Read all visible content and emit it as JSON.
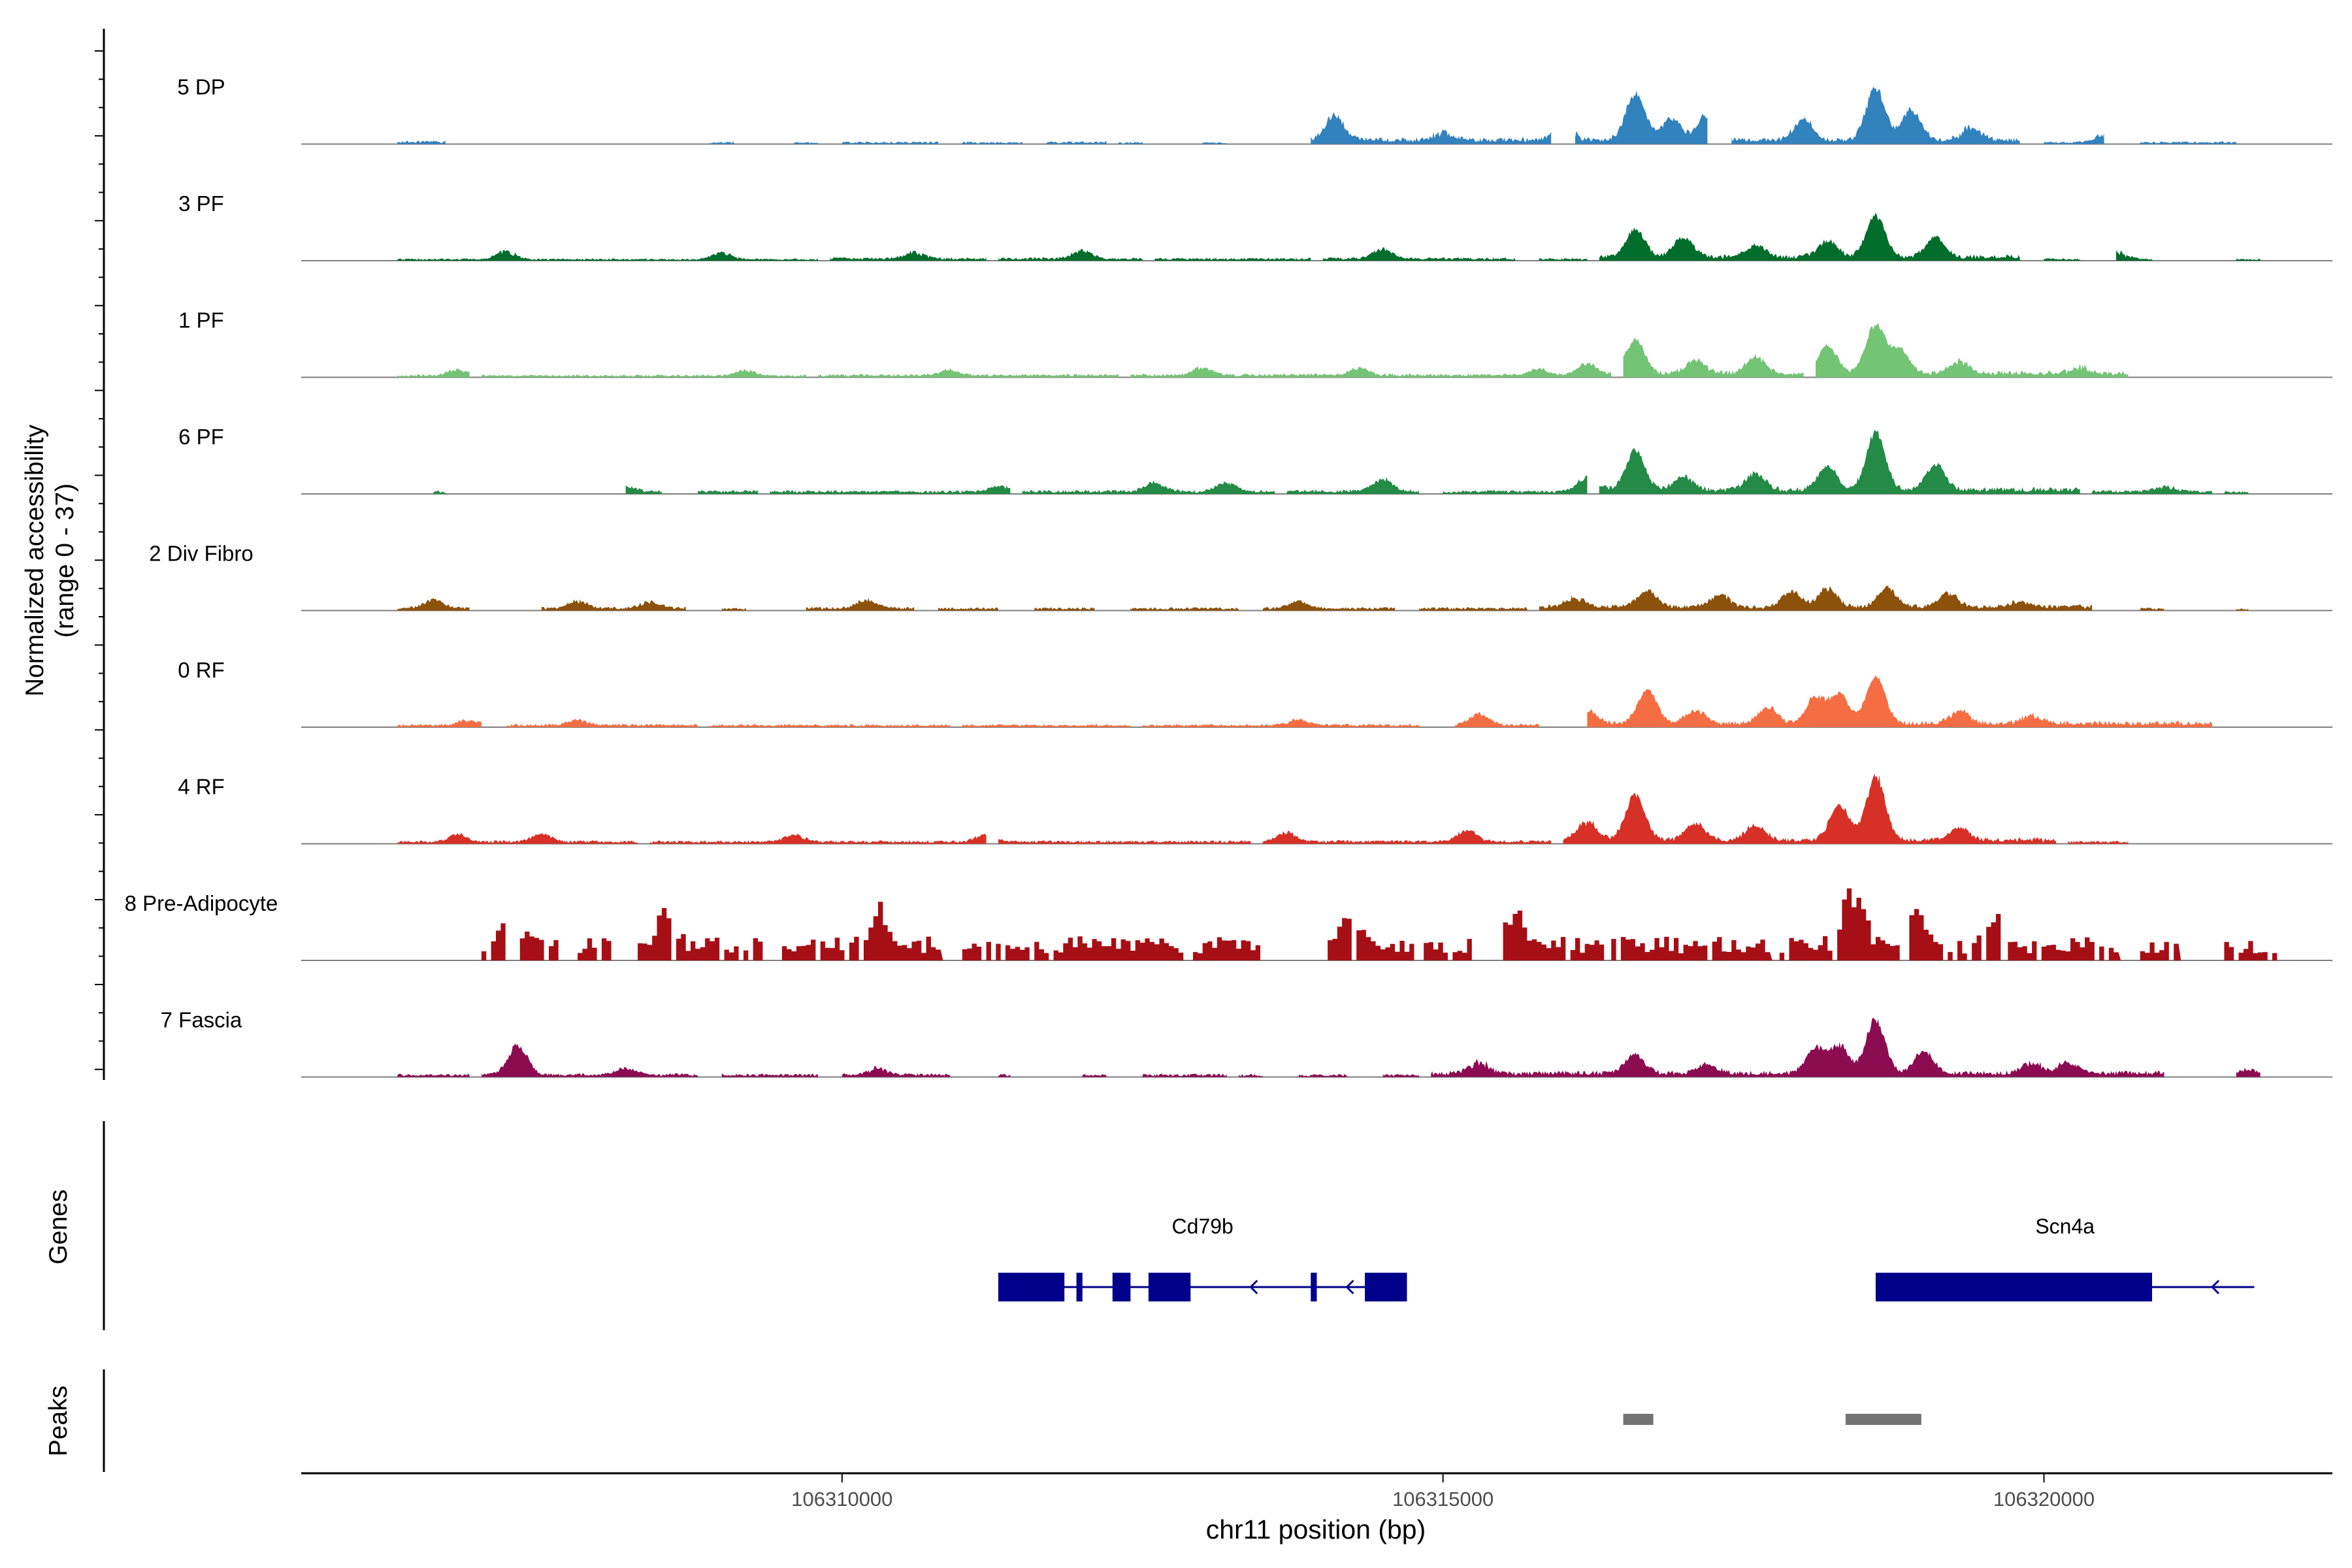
{
  "chart_data": {
    "type": "area",
    "region": {
      "chromosome": "chr11",
      "start": 106305500,
      "end": 106322400
    },
    "y_axis": {
      "label_line1": "Normalized accessibility",
      "label_line2": "(range 0 - 37)",
      "range": [
        0,
        37
      ]
    },
    "x_axis": {
      "label": "chr11 position (bp)",
      "ticks": [
        106310000,
        106315000,
        106320000
      ],
      "tick_labels": [
        "106310000",
        "106315000",
        "106320000"
      ]
    },
    "tracks": [
      {
        "name": "5 DP",
        "color": "#3182bd",
        "style": "smooth",
        "seed": 11,
        "segments": [
          [
            106306300,
            106306700,
            0.5
          ],
          [
            106308900,
            106309100,
            0.3
          ],
          [
            106309600,
            106309800,
            0.3
          ],
          [
            106310000,
            106310800,
            0.35
          ],
          [
            106311000,
            106311500,
            0.3
          ],
          [
            106311700,
            106312200,
            0.35
          ],
          [
            106312300,
            106312500,
            0.3
          ],
          [
            106313000,
            106313200,
            0.3
          ],
          [
            106313900,
            106315900,
            0.9
          ],
          [
            106316100,
            106317200,
            1.0
          ],
          [
            106317400,
            106319800,
            0.85
          ],
          [
            106320000,
            106320500,
            0.35
          ],
          [
            106320800,
            106321600,
            0.35
          ]
        ],
        "peaks": [
          [
            106314100,
            8,
            0.75
          ],
          [
            106315000,
            3,
            0.5
          ],
          [
            106316000,
            5,
            0.5
          ],
          [
            106316600,
            14,
            0.9
          ],
          [
            106316900,
            6,
            1.0
          ],
          [
            106317200,
            8,
            0.75
          ],
          [
            106318000,
            7,
            0.8
          ],
          [
            106318600,
            16,
            0.85
          ],
          [
            106318900,
            10,
            0.8
          ],
          [
            106319400,
            5,
            0.5
          ],
          [
            106320500,
            3,
            0.4
          ]
        ]
      },
      {
        "name": "3 PF",
        "color": "#006d2c",
        "style": "smooth",
        "seed": 23,
        "segments": [
          [
            106306300,
            106309800,
            0.3
          ],
          [
            106309900,
            106311200,
            0.45
          ],
          [
            106311300,
            106312500,
            0.45
          ],
          [
            106312600,
            106313900,
            0.4
          ],
          [
            106314000,
            106315600,
            0.45
          ],
          [
            106315800,
            106316200,
            0.35
          ],
          [
            106316300,
            106319800,
            0.85
          ],
          [
            106320000,
            106320300,
            0.35
          ],
          [
            106320600,
            106320900,
            0.35
          ],
          [
            106321600,
            106321800,
            0.3
          ]
        ],
        "peaks": [
          [
            106307200,
            3,
            0.5
          ],
          [
            106309000,
            2.5,
            0.5
          ],
          [
            106310600,
            2.5,
            0.5
          ],
          [
            106312000,
            3,
            0.6
          ],
          [
            106314500,
            3.5,
            0.6
          ],
          [
            106316600,
            8,
            1.0
          ],
          [
            106317000,
            6,
            0.9
          ],
          [
            106317600,
            4,
            0.8
          ],
          [
            106318200,
            5,
            0.9
          ],
          [
            106318600,
            13,
            0.85
          ],
          [
            106319100,
            6,
            0.9
          ],
          [
            106320600,
            3,
            0.4
          ]
        ]
      },
      {
        "name": "1 PF",
        "color": "#74c476",
        "style": "smooth",
        "seed": 37,
        "segments": [
          [
            106306300,
            106306900,
            0.4
          ],
          [
            106307000,
            106309700,
            0.35
          ],
          [
            106309800,
            106312300,
            0.45
          ],
          [
            106312400,
            106316400,
            0.5
          ],
          [
            106316500,
            106318000,
            0.9
          ],
          [
            106318100,
            106320700,
            0.9
          ]
        ],
        "peaks": [
          [
            106306800,
            2,
            0.6
          ],
          [
            106309200,
            2,
            0.6
          ],
          [
            106310900,
            2,
            0.6
          ],
          [
            106313000,
            2.5,
            0.7
          ],
          [
            106314300,
            2.5,
            0.7
          ],
          [
            106315800,
            2,
            0.7
          ],
          [
            106316200,
            4,
            0.7
          ],
          [
            106316600,
            10,
            0.95
          ],
          [
            106317100,
            4,
            0.9
          ],
          [
            106317600,
            5,
            0.9
          ],
          [
            106318200,
            8,
            1.0
          ],
          [
            106318600,
            15,
            0.85
          ],
          [
            106318800,
            7,
            1.0
          ],
          [
            106319300,
            4,
            0.7
          ],
          [
            106320300,
            2,
            0.5
          ]
        ]
      },
      {
        "name": "6 PF",
        "color": "#238b45",
        "style": "smooth",
        "seed": 41,
        "segments": [
          [
            106306600,
            106306700,
            0.5
          ],
          [
            106308200,
            106308500,
            0.5
          ],
          [
            106308800,
            106309300,
            0.5
          ],
          [
            106309400,
            106311400,
            0.5
          ],
          [
            106311500,
            106313600,
            0.55
          ],
          [
            106313700,
            106314800,
            0.6
          ],
          [
            106315000,
            106316200,
            0.5
          ],
          [
            106316300,
            106320300,
            0.9
          ],
          [
            106320400,
            106321400,
            0.55
          ],
          [
            106321500,
            106321700,
            0.4
          ]
        ],
        "peaks": [
          [
            106308200,
            2,
            0.6
          ],
          [
            106311300,
            2,
            0.6
          ],
          [
            106312600,
            3,
            0.7
          ],
          [
            106313200,
            3,
            0.7
          ],
          [
            106314500,
            4,
            0.8
          ],
          [
            106316200,
            5,
            0.75
          ],
          [
            106316600,
            12,
            0.9
          ],
          [
            106317000,
            4,
            0.9
          ],
          [
            106317600,
            5,
            0.9
          ],
          [
            106318200,
            7,
            1.0
          ],
          [
            106318600,
            18,
            0.85
          ],
          [
            106319100,
            8,
            0.85
          ],
          [
            106321000,
            2,
            0.5
          ]
        ]
      },
      {
        "name": "2 Div Fibro",
        "color": "#8c510a",
        "style": "smooth",
        "seed": 53,
        "segments": [
          [
            106306300,
            106306900,
            0.5
          ],
          [
            106307500,
            106308700,
            0.5
          ],
          [
            106309000,
            106309200,
            0.4
          ],
          [
            106309700,
            106310600,
            0.5
          ],
          [
            106310800,
            106311300,
            0.45
          ],
          [
            106311600,
            106312100,
            0.45
          ],
          [
            106312400,
            106313300,
            0.45
          ],
          [
            106313500,
            106314600,
            0.5
          ],
          [
            106314800,
            106315700,
            0.45
          ],
          [
            106315800,
            106320400,
            0.8
          ],
          [
            106320800,
            106321000,
            0.4
          ],
          [
            106321600,
            106321700,
            0.3
          ]
        ],
        "peaks": [
          [
            106306600,
            3,
            0.6
          ],
          [
            106307800,
            2.5,
            0.6
          ],
          [
            106308400,
            2.5,
            0.6
          ],
          [
            106310200,
            3,
            0.6
          ],
          [
            106313800,
            2.5,
            0.6
          ],
          [
            106316100,
            3,
            0.7
          ],
          [
            106316700,
            5,
            0.8
          ],
          [
            106317300,
            4,
            0.8
          ],
          [
            106317900,
            5,
            0.8
          ],
          [
            106318200,
            6,
            0.8
          ],
          [
            106318700,
            6,
            0.8
          ],
          [
            106319200,
            5,
            0.7
          ],
          [
            106319800,
            2,
            0.5
          ]
        ]
      },
      {
        "name": "0 RF",
        "color": "#f46d43",
        "style": "smooth",
        "seed": 67,
        "segments": [
          [
            106306300,
            106307000,
            0.45
          ],
          [
            106307200,
            106308800,
            0.45
          ],
          [
            106308900,
            106310900,
            0.4
          ],
          [
            106311000,
            106312400,
            0.4
          ],
          [
            106312500,
            106313500,
            0.4
          ],
          [
            106313500,
            106314800,
            0.45
          ],
          [
            106315100,
            106315800,
            0.45
          ],
          [
            106316200,
            106321400,
            0.85
          ]
        ],
        "peaks": [
          [
            106306900,
            2,
            0.6
          ],
          [
            106307800,
            2,
            0.6
          ],
          [
            106313800,
            2,
            0.6
          ],
          [
            106315300,
            4,
            0.6
          ],
          [
            106316200,
            4,
            0.7
          ],
          [
            106316700,
            10,
            0.95
          ],
          [
            106317100,
            4,
            0.9
          ],
          [
            106317700,
            5,
            0.8
          ],
          [
            106318100,
            8,
            0.9
          ],
          [
            106318300,
            9,
            0.9
          ],
          [
            106318600,
            15,
            0.85
          ],
          [
            106319300,
            4,
            0.7
          ],
          [
            106319900,
            3,
            0.6
          ]
        ]
      },
      {
        "name": "4 RF",
        "color": "#d73027",
        "style": "smooth",
        "seed": 79,
        "segments": [
          [
            106306300,
            106308300,
            0.45
          ],
          [
            106308400,
            106311200,
            0.45
          ],
          [
            106311300,
            106313400,
            0.45
          ],
          [
            106313500,
            106315900,
            0.5
          ],
          [
            106316000,
            106320100,
            0.85
          ],
          [
            106320200,
            106320700,
            0.4
          ]
        ],
        "peaks": [
          [
            106306800,
            2.5,
            0.6
          ],
          [
            106307500,
            3,
            0.6
          ],
          [
            106309600,
            2.5,
            0.6
          ],
          [
            106311200,
            3,
            0.6
          ],
          [
            106313700,
            3,
            0.7
          ],
          [
            106315200,
            4,
            0.7
          ],
          [
            106316200,
            6,
            0.7
          ],
          [
            106316600,
            14,
            0.9
          ],
          [
            106317100,
            5,
            0.9
          ],
          [
            106317600,
            5,
            0.8
          ],
          [
            106318300,
            11,
            0.9
          ],
          [
            106318600,
            20,
            0.85
          ],
          [
            106319300,
            4,
            0.7
          ]
        ]
      },
      {
        "name": "8 Pre-Adipocyte",
        "color": "#a50f15",
        "style": "blocky",
        "seed": 97,
        "segments": [
          [
            106307000,
            106307600,
            1
          ],
          [
            106307800,
            106308100,
            1
          ],
          [
            106308300,
            106309400,
            1
          ],
          [
            106309500,
            106310800,
            1
          ],
          [
            106311000,
            106313500,
            1
          ],
          [
            106314000,
            106315200,
            1
          ],
          [
            106315500,
            106316300,
            1
          ],
          [
            106316400,
            106317700,
            1
          ],
          [
            106317800,
            106319600,
            1
          ],
          [
            106319700,
            106320600,
            1
          ],
          [
            106320800,
            106321100,
            1
          ],
          [
            106321500,
            106321900,
            1
          ]
        ],
        "peaks": [
          [
            106307200,
            12,
            0.5
          ],
          [
            106308500,
            11,
            0.5
          ],
          [
            106310300,
            13,
            0.6
          ],
          [
            106314200,
            11,
            0.5
          ],
          [
            106315600,
            12,
            0.6
          ],
          [
            106318400,
            20,
            0.5
          ],
          [
            106318900,
            12,
            0.6
          ],
          [
            106319600,
            10,
            0.5
          ]
        ]
      },
      {
        "name": "7 Fascia",
        "color": "#8c0c52",
        "style": "smooth",
        "seed": 113,
        "segments": [
          [
            106306300,
            106306900,
            0.45
          ],
          [
            106307000,
            106308800,
            0.5
          ],
          [
            106309000,
            106309800,
            0.45
          ],
          [
            106310000,
            106310900,
            0.5
          ],
          [
            106311300,
            106311400,
            0.4
          ],
          [
            106312000,
            106312200,
            0.4
          ],
          [
            106312500,
            106313200,
            0.45
          ],
          [
            106313300,
            106313500,
            0.4
          ],
          [
            106313800,
            106314200,
            0.4
          ],
          [
            106314500,
            106314800,
            0.4
          ],
          [
            106314900,
            106321000,
            0.85
          ],
          [
            106321600,
            106321800,
            0.4
          ]
        ],
        "peaks": [
          [
            106307300,
            10,
            0.7
          ],
          [
            106308200,
            2.5,
            0.5
          ],
          [
            106310300,
            2.5,
            0.5
          ],
          [
            106315300,
            4,
            0.6
          ],
          [
            106316600,
            6,
            0.8
          ],
          [
            106317200,
            3,
            0.7
          ],
          [
            106318100,
            8,
            0.8
          ],
          [
            106318300,
            9,
            0.8
          ],
          [
            106318600,
            17,
            0.85
          ],
          [
            106319000,
            7,
            0.85
          ],
          [
            106319900,
            4,
            0.6
          ],
          [
            106320200,
            4,
            0.6
          ],
          [
            106321700,
            2,
            0.5
          ]
        ]
      }
    ],
    "genes": [
      {
        "name": "Cd79b",
        "start": 106311300,
        "end": 106314700,
        "strand": "-",
        "exons": [
          [
            106311300,
            106311850
          ],
          [
            106311950,
            106312000
          ],
          [
            106312250,
            106312400
          ],
          [
            106312550,
            106312900
          ],
          [
            106313900,
            106313950
          ],
          [
            106314350,
            106314700
          ]
        ],
        "arrows": [
          106313400,
          106314200
        ]
      },
      {
        "name": "Scn4a",
        "start": 106318600,
        "end": 106321750,
        "strand": "-",
        "exons": [
          [
            106318600,
            106320900
          ]
        ],
        "arrows": [
          106321400
        ]
      }
    ],
    "peaks": [
      [
        106316500,
        106316750
      ],
      [
        106318350,
        106318980
      ]
    ]
  },
  "panels": {
    "genes_label": "Genes",
    "peaks_label": "Peaks"
  }
}
